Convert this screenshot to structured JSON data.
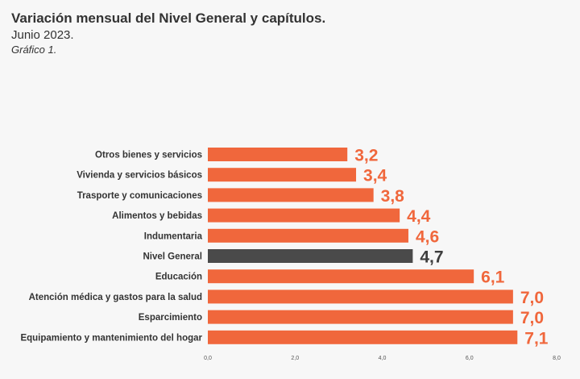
{
  "header": {
    "title": "Variación mensual del Nivel General y capítulos.",
    "subtitle": "Junio 2023.",
    "caption": "Gráfico 1."
  },
  "chart_data": {
    "type": "bar",
    "orientation": "horizontal",
    "categories": [
      "Otros bienes y servicios",
      "Vivienda y servicios básicos",
      "Trasporte y comunicaciones",
      "Alimentos y bebidas",
      "Indumentaria",
      "Nivel General",
      "Educación",
      "Atención médica y gastos para la salud",
      "Esparcimiento",
      "Equipamiento y mantenimiento del hogar"
    ],
    "values": [
      3.2,
      3.4,
      3.8,
      4.4,
      4.6,
      4.7,
      6.1,
      7.0,
      7.0,
      7.1
    ],
    "value_labels": [
      "3,2",
      "3,4",
      "3,8",
      "4,4",
      "4,6",
      "4,7",
      "6,1",
      "7,0",
      "7,0",
      "7,1"
    ],
    "highlight_category": "Nivel General",
    "xlim": [
      0,
      8
    ],
    "x_ticks": [
      0,
      2,
      4,
      6,
      8
    ],
    "x_tick_labels": [
      "0,0",
      "2,0",
      "4,0",
      "6,0",
      "8,0"
    ],
    "colors": {
      "bar": "#f0673c",
      "highlight_bar": "#4a4a4a",
      "label": "#f0673c",
      "highlight_label": "#3d3d3d"
    },
    "grid": false,
    "legend": "none"
  }
}
